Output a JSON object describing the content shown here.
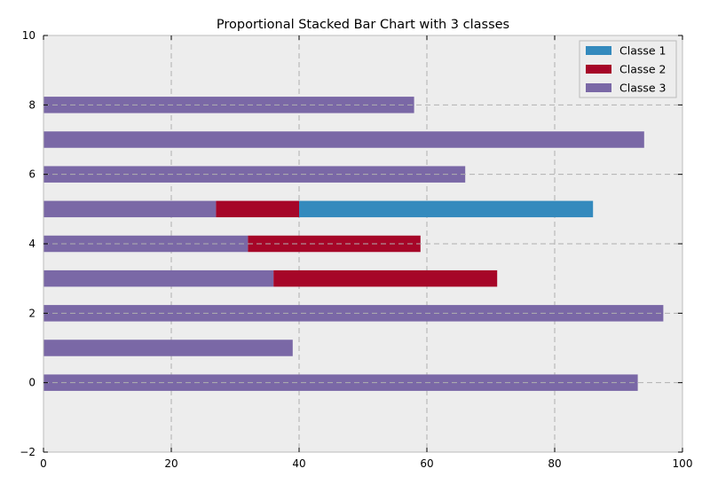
{
  "chart_data": {
    "type": "bar",
    "orientation": "horizontal",
    "stacked": true,
    "title": "Proportional Stacked Bar Chart with 3 classes",
    "xlabel": "",
    "ylabel": "",
    "xlim": [
      0,
      100
    ],
    "ylim": [
      -2,
      10
    ],
    "xticks": [
      0,
      20,
      40,
      60,
      80,
      100
    ],
    "yticks": [
      -2,
      0,
      2,
      4,
      6,
      8,
      10
    ],
    "grid": true,
    "legend_position": "top-right",
    "background_color": "#ededed",
    "categories": [
      0,
      1,
      2,
      3,
      4,
      5,
      6,
      7,
      8
    ],
    "stack_order": [
      "Classe 3",
      "Classe 2",
      "Classe 1"
    ],
    "series": [
      {
        "name": "Classe 1",
        "color": "#348abd",
        "values": [
          0,
          0,
          0,
          0,
          0,
          46,
          0,
          0,
          0
        ]
      },
      {
        "name": "Classe 2",
        "color": "#a60628",
        "values": [
          0,
          0,
          0,
          35,
          27,
          13,
          0,
          0,
          0
        ]
      },
      {
        "name": "Classe 3",
        "color": "#7a68a6",
        "values": [
          93,
          39,
          97,
          36,
          32,
          27,
          66,
          94,
          58
        ]
      }
    ]
  }
}
